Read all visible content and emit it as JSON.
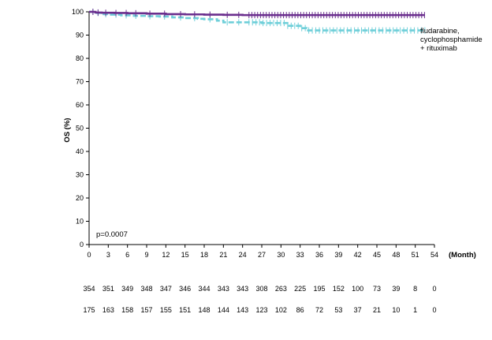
{
  "chart_data": {
    "type": "line",
    "title": "",
    "xlabel": "(Month)",
    "ylabel": "OS (%)",
    "xlim": [
      0,
      54
    ],
    "ylim": [
      0,
      100
    ],
    "xticks": [
      0,
      3,
      6,
      9,
      12,
      15,
      18,
      21,
      24,
      27,
      30,
      33,
      36,
      39,
      42,
      45,
      48,
      51,
      54
    ],
    "yticks": [
      0,
      10,
      20,
      30,
      40,
      50,
      60,
      70,
      80,
      90,
      100
    ],
    "grid": false,
    "annotation": "p=0.0007",
    "series": [
      {
        "name": "",
        "color": "#6b2f8e",
        "style": "solid",
        "x": [
          0,
          1,
          2,
          4,
          6,
          9,
          12,
          15,
          18,
          21,
          24,
          27,
          30,
          33,
          36,
          39,
          42,
          45,
          48,
          51,
          52.5
        ],
        "y": [
          100,
          99.7,
          99.6,
          99.5,
          99.4,
          99.2,
          99,
          98.9,
          98.8,
          98.7,
          98.6,
          98.6,
          98.6,
          98.6,
          98.6,
          98.6,
          98.6,
          98.6,
          98.6,
          98.6,
          98.6
        ]
      },
      {
        "name": "fludarabine, cyclophosphamide + rituximab",
        "color": "#6fcfd9",
        "style": "dashed",
        "x": [
          0,
          1,
          2,
          3,
          5,
          7,
          9,
          11,
          13,
          15,
          17,
          18,
          20,
          21,
          24,
          27,
          30,
          31,
          33,
          34,
          36,
          39,
          42,
          45,
          48,
          51,
          52.5
        ],
        "y": [
          100,
          99.5,
          99,
          98.8,
          98.5,
          98.3,
          98.1,
          98,
          97.6,
          97.3,
          97,
          96.8,
          96.2,
          95.5,
          95.5,
          95.2,
          95.2,
          94,
          93,
          92,
          92,
          92,
          92,
          92,
          92,
          92,
          92
        ]
      }
    ],
    "legend_labels": [
      "fludarabine,",
      "cyclophosphamide",
      "+ rituximab"
    ],
    "risk_table": {
      "rows": [
        [
          "354",
          "351",
          "349",
          "348",
          "347",
          "346",
          "344",
          "343",
          "343",
          "308",
          "263",
          "225",
          "195",
          "152",
          "100",
          "73",
          "39",
          "8",
          "0"
        ],
        [
          "175",
          "163",
          "158",
          "157",
          "155",
          "151",
          "148",
          "144",
          "143",
          "123",
          "102",
          "86",
          "72",
          "53",
          "37",
          "21",
          "10",
          "1",
          "0"
        ]
      ]
    }
  }
}
